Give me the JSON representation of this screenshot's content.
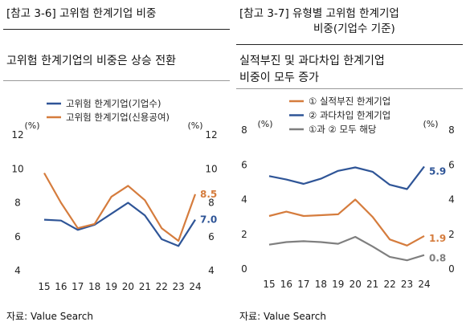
{
  "colors": {
    "blue": "#2F5597",
    "orange": "#D57C3D",
    "gray": "#7F7F7F"
  },
  "chart_data": [
    {
      "type": "line",
      "header": "[참고 3-6] 고위험 한계기업 비중",
      "title": "고위험 한계기업의 비중은 상승 전환",
      "source": "자료: Value Search",
      "x": [
        "15",
        "16",
        "17",
        "18",
        "19",
        "20",
        "21",
        "22",
        "23",
        "24"
      ],
      "unit_left": "(%)",
      "unit_right": "(%)",
      "ylim": [
        4,
        12
      ],
      "yticks": [
        "4",
        "6",
        "8",
        "10",
        "12"
      ],
      "yticks_right": [
        "4",
        "6",
        "8",
        "10",
        "12"
      ],
      "series": [
        {
          "name": "고위험 한계기업(기업수)",
          "color": "#2F5597",
          "values": [
            7.0,
            6.95,
            6.4,
            6.7,
            7.35,
            8.0,
            7.25,
            5.85,
            5.45,
            7.0
          ],
          "end_label": "7.0"
        },
        {
          "name": "고위험 한계기업(신용공여)",
          "color": "#D57C3D",
          "values": [
            9.75,
            8.0,
            6.5,
            6.75,
            8.35,
            9.0,
            8.15,
            6.5,
            5.75,
            8.5
          ],
          "end_label": "8.5"
        }
      ]
    },
    {
      "type": "line",
      "header_line1": "[참고 3-7] 유형별 고위험 한계기업",
      "header_line2": "비중(기업수 기준)",
      "title_line1": "실적부진 및 과다차입 한계기업",
      "title_line2": "비중이 모두 증가",
      "source": "자료: Value Search",
      "x": [
        "15",
        "16",
        "17",
        "18",
        "19",
        "20",
        "21",
        "22",
        "23",
        "24"
      ],
      "unit_left": "(%)",
      "unit_right": "(%)",
      "ylim": [
        0,
        8
      ],
      "yticks": [
        "0",
        "2",
        "4",
        "6",
        "8"
      ],
      "yticks_right": [
        "0",
        "2",
        "4",
        "6",
        "8"
      ],
      "series": [
        {
          "name": "① 실적부진 한계기업",
          "color": "#D57C3D",
          "values": [
            3.05,
            3.3,
            3.05,
            3.1,
            3.15,
            4.0,
            3.0,
            1.7,
            1.35,
            1.9
          ],
          "end_label": "1.9"
        },
        {
          "name": "② 과다차입 한계기업",
          "color": "#2F5597",
          "values": [
            5.35,
            5.15,
            4.9,
            5.2,
            5.65,
            5.85,
            5.6,
            4.85,
            4.6,
            5.9
          ],
          "end_label": "5.9"
        },
        {
          "name": "①과 ② 모두 해당",
          "color": "#7F7F7F",
          "values": [
            1.4,
            1.55,
            1.6,
            1.55,
            1.45,
            1.85,
            1.3,
            0.7,
            0.5,
            0.8
          ],
          "end_label": "0.8"
        }
      ]
    }
  ]
}
